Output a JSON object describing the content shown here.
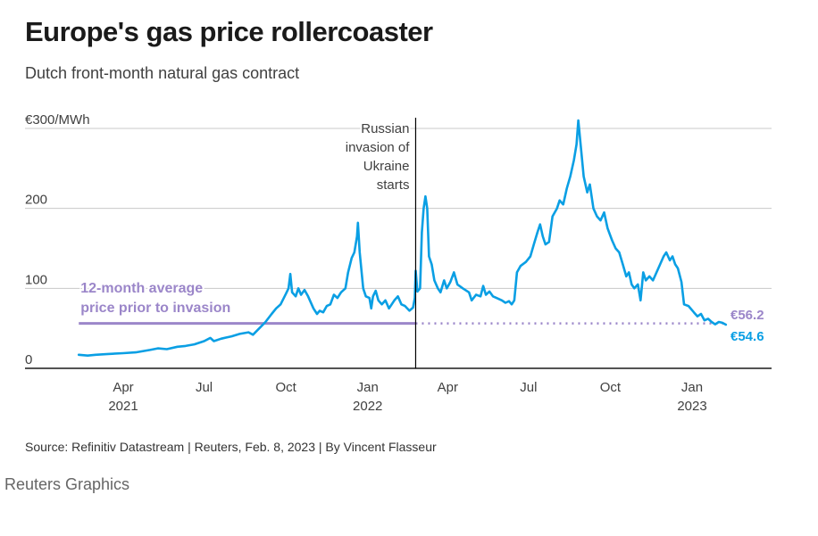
{
  "header": {
    "title": "Europe's gas price rollercoaster",
    "subtitle": "Dutch front-month natural gas contract"
  },
  "footer": {
    "source": "Source: Refinitiv Datastream | Reuters, Feb. 8, 2023 | By Vincent Flasseur",
    "brand": "Reuters Graphics"
  },
  "colors": {
    "series": "#0a9fe4",
    "average": "#9b86c9",
    "gridline": "#c8c8c8",
    "axis": "#1a1a1a",
    "text": "#404040"
  },
  "chart_data": {
    "type": "line",
    "title": "Europe's gas price rollercoaster",
    "subtitle": "Dutch front-month natural gas contract",
    "xlabel": "",
    "ylabel": "€/MWh",
    "ylim": [
      0,
      300
    ],
    "xlim": [
      "2021-01-20",
      "2023-03-20"
    ],
    "grid": true,
    "y_ticks": [
      {
        "value": 0,
        "label": "0"
      },
      {
        "value": 100,
        "label": "100"
      },
      {
        "value": 200,
        "label": "200"
      },
      {
        "value": 300,
        "label": "€300/MWh"
      }
    ],
    "x_ticks": [
      {
        "date": "2021-04-01",
        "label": "Apr",
        "year": "2021"
      },
      {
        "date": "2021-07-01",
        "label": "Jul",
        "year": ""
      },
      {
        "date": "2021-10-01",
        "label": "Oct",
        "year": ""
      },
      {
        "date": "2022-01-01",
        "label": "Jan",
        "year": "2022"
      },
      {
        "date": "2022-04-01",
        "label": "Apr",
        "year": ""
      },
      {
        "date": "2022-07-01",
        "label": "Jul",
        "year": ""
      },
      {
        "date": "2022-10-01",
        "label": "Oct",
        "year": ""
      },
      {
        "date": "2023-01-01",
        "label": "Jan",
        "year": "2023"
      }
    ],
    "series": [
      {
        "name": "Dutch front-month natural gas contract",
        "end_label": "€54.6",
        "end_value": 54.6,
        "points": [
          [
            "2021-02-10",
            17
          ],
          [
            "2021-02-20",
            16
          ],
          [
            "2021-03-01",
            17
          ],
          [
            "2021-03-15",
            18
          ],
          [
            "2021-04-01",
            19
          ],
          [
            "2021-04-15",
            20
          ],
          [
            "2021-05-01",
            23
          ],
          [
            "2021-05-10",
            25
          ],
          [
            "2021-05-20",
            24
          ],
          [
            "2021-06-01",
            27
          ],
          [
            "2021-06-10",
            28
          ],
          [
            "2021-06-20",
            30
          ],
          [
            "2021-07-01",
            34
          ],
          [
            "2021-07-08",
            38
          ],
          [
            "2021-07-12",
            34
          ],
          [
            "2021-07-20",
            37
          ],
          [
            "2021-08-01",
            40
          ],
          [
            "2021-08-10",
            43
          ],
          [
            "2021-08-20",
            45
          ],
          [
            "2021-08-25",
            42
          ],
          [
            "2021-09-01",
            50
          ],
          [
            "2021-09-08",
            58
          ],
          [
            "2021-09-15",
            68
          ],
          [
            "2021-09-20",
            75
          ],
          [
            "2021-09-25",
            80
          ],
          [
            "2021-10-01",
            93
          ],
          [
            "2021-10-04",
            100
          ],
          [
            "2021-10-06",
            118
          ],
          [
            "2021-10-08",
            95
          ],
          [
            "2021-10-12",
            90
          ],
          [
            "2021-10-15",
            100
          ],
          [
            "2021-10-18",
            92
          ],
          [
            "2021-10-22",
            98
          ],
          [
            "2021-10-26",
            90
          ],
          [
            "2021-11-01",
            75
          ],
          [
            "2021-11-05",
            68
          ],
          [
            "2021-11-08",
            72
          ],
          [
            "2021-11-12",
            70
          ],
          [
            "2021-11-16",
            78
          ],
          [
            "2021-11-20",
            80
          ],
          [
            "2021-11-24",
            92
          ],
          [
            "2021-11-28",
            88
          ],
          [
            "2021-12-02",
            95
          ],
          [
            "2021-12-07",
            100
          ],
          [
            "2021-12-10",
            120
          ],
          [
            "2021-12-14",
            138
          ],
          [
            "2021-12-17",
            145
          ],
          [
            "2021-12-20",
            165
          ],
          [
            "2021-12-21",
            182
          ],
          [
            "2021-12-23",
            145
          ],
          [
            "2021-12-27",
            100
          ],
          [
            "2021-12-30",
            90
          ],
          [
            "2022-01-03",
            88
          ],
          [
            "2022-01-05",
            75
          ],
          [
            "2022-01-07",
            90
          ],
          [
            "2022-01-10",
            97
          ],
          [
            "2022-01-13",
            85
          ],
          [
            "2022-01-17",
            80
          ],
          [
            "2022-01-21",
            85
          ],
          [
            "2022-01-25",
            75
          ],
          [
            "2022-01-31",
            85
          ],
          [
            "2022-02-04",
            90
          ],
          [
            "2022-02-08",
            80
          ],
          [
            "2022-02-12",
            78
          ],
          [
            "2022-02-17",
            72
          ],
          [
            "2022-02-21",
            76
          ],
          [
            "2022-02-23",
            88
          ],
          [
            "2022-02-24",
            122
          ],
          [
            "2022-02-26",
            96
          ],
          [
            "2022-03-01",
            100
          ],
          [
            "2022-03-03",
            170
          ],
          [
            "2022-03-05",
            200
          ],
          [
            "2022-03-07",
            215
          ],
          [
            "2022-03-09",
            200
          ],
          [
            "2022-03-11",
            140
          ],
          [
            "2022-03-14",
            130
          ],
          [
            "2022-03-17",
            110
          ],
          [
            "2022-03-21",
            100
          ],
          [
            "2022-03-24",
            95
          ],
          [
            "2022-03-28",
            110
          ],
          [
            "2022-03-31",
            100
          ],
          [
            "2022-04-04",
            108
          ],
          [
            "2022-04-08",
            120
          ],
          [
            "2022-04-12",
            105
          ],
          [
            "2022-04-18",
            100
          ],
          [
            "2022-04-25",
            95
          ],
          [
            "2022-04-28",
            85
          ],
          [
            "2022-05-03",
            92
          ],
          [
            "2022-05-08",
            90
          ],
          [
            "2022-05-11",
            103
          ],
          [
            "2022-05-14",
            92
          ],
          [
            "2022-05-18",
            96
          ],
          [
            "2022-05-22",
            90
          ],
          [
            "2022-05-26",
            88
          ],
          [
            "2022-06-01",
            85
          ],
          [
            "2022-06-05",
            82
          ],
          [
            "2022-06-09",
            84
          ],
          [
            "2022-06-12",
            80
          ],
          [
            "2022-06-15",
            85
          ],
          [
            "2022-06-18",
            120
          ],
          [
            "2022-06-22",
            128
          ],
          [
            "2022-06-28",
            133
          ],
          [
            "2022-07-03",
            140
          ],
          [
            "2022-07-07",
            155
          ],
          [
            "2022-07-11",
            170
          ],
          [
            "2022-07-14",
            180
          ],
          [
            "2022-07-17",
            165
          ],
          [
            "2022-07-20",
            155
          ],
          [
            "2022-07-24",
            158
          ],
          [
            "2022-07-28",
            190
          ],
          [
            "2022-08-02",
            200
          ],
          [
            "2022-08-05",
            210
          ],
          [
            "2022-08-09",
            205
          ],
          [
            "2022-08-13",
            225
          ],
          [
            "2022-08-17",
            240
          ],
          [
            "2022-08-21",
            260
          ],
          [
            "2022-08-24",
            280
          ],
          [
            "2022-08-26",
            310
          ],
          [
            "2022-08-29",
            275
          ],
          [
            "2022-09-01",
            240
          ],
          [
            "2022-09-05",
            220
          ],
          [
            "2022-09-08",
            230
          ],
          [
            "2022-09-12",
            200
          ],
          [
            "2022-09-16",
            190
          ],
          [
            "2022-09-20",
            185
          ],
          [
            "2022-09-24",
            195
          ],
          [
            "2022-09-28",
            175
          ],
          [
            "2022-10-03",
            160
          ],
          [
            "2022-10-07",
            150
          ],
          [
            "2022-10-11",
            145
          ],
          [
            "2022-10-15",
            130
          ],
          [
            "2022-10-19",
            115
          ],
          [
            "2022-10-22",
            120
          ],
          [
            "2022-10-25",
            105
          ],
          [
            "2022-10-28",
            100
          ],
          [
            "2022-11-01",
            105
          ],
          [
            "2022-11-04",
            85
          ],
          [
            "2022-11-07",
            120
          ],
          [
            "2022-11-10",
            110
          ],
          [
            "2022-11-14",
            115
          ],
          [
            "2022-11-18",
            110
          ],
          [
            "2022-11-22",
            120
          ],
          [
            "2022-11-26",
            130
          ],
          [
            "2022-11-30",
            140
          ],
          [
            "2022-12-03",
            145
          ],
          [
            "2022-12-07",
            135
          ],
          [
            "2022-12-10",
            140
          ],
          [
            "2022-12-13",
            130
          ],
          [
            "2022-12-16",
            125
          ],
          [
            "2022-12-20",
            108
          ],
          [
            "2022-12-23",
            80
          ],
          [
            "2022-12-28",
            78
          ],
          [
            "2023-01-03",
            70
          ],
          [
            "2023-01-07",
            65
          ],
          [
            "2023-01-11",
            68
          ],
          [
            "2023-01-15",
            60
          ],
          [
            "2023-01-19",
            62
          ],
          [
            "2023-01-23",
            58
          ],
          [
            "2023-01-27",
            55
          ],
          [
            "2023-01-31",
            58
          ],
          [
            "2023-02-04",
            57
          ],
          [
            "2023-02-08",
            54.6
          ]
        ]
      }
    ],
    "reference_lines": [
      {
        "name": "12-month average price prior to invasion",
        "value": 56.2,
        "end_label": "€56.2",
        "label_lines": [
          "12-month average",
          "price prior to invasion"
        ],
        "solid_until": "2022-02-24",
        "dotted_after": true
      }
    ],
    "annotations": [
      {
        "date": "2022-02-24",
        "label_lines": [
          "Russian",
          "invasion of",
          "Ukraine",
          "starts"
        ]
      }
    ]
  }
}
